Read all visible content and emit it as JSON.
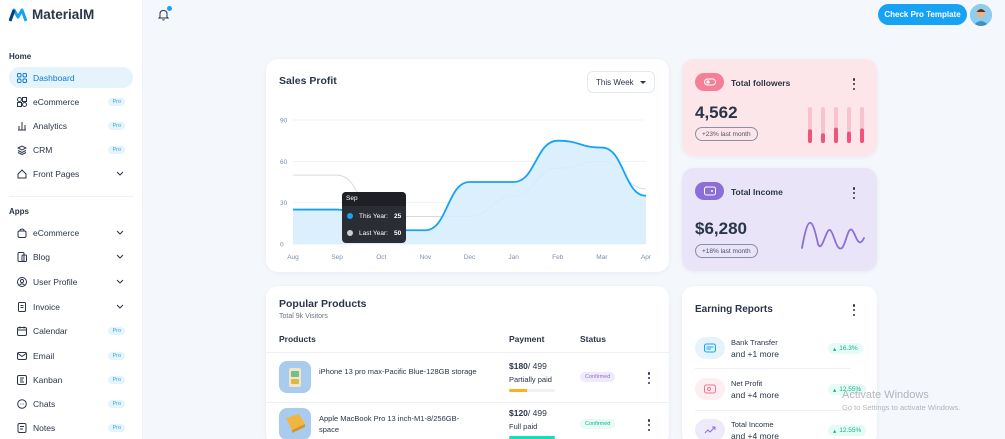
{
  "brand": {
    "name": "MaterialM"
  },
  "sidebar": {
    "home_caption": "Home",
    "apps_caption": "Apps",
    "pro_label": "Pro",
    "home_items": [
      {
        "label": "Dashboard",
        "icon": "dashboard-icon",
        "active": true,
        "badge": ""
      },
      {
        "label": "eCommerce",
        "icon": "ecommerce-icon",
        "badge": "Pro"
      },
      {
        "label": "Analytics",
        "icon": "analytics-icon",
        "badge": "Pro"
      },
      {
        "label": "CRM",
        "icon": "crm-icon",
        "badge": "Pro"
      },
      {
        "label": "Front Pages",
        "icon": "front-pages-icon",
        "badge": "chevron"
      }
    ],
    "apps_items": [
      {
        "label": "eCommerce",
        "icon": "bag-icon",
        "badge": "chevron"
      },
      {
        "label": "Blog",
        "icon": "blog-icon",
        "badge": "chevron"
      },
      {
        "label": "User Profile",
        "icon": "user-icon",
        "badge": "chevron"
      },
      {
        "label": "Invoice",
        "icon": "invoice-icon",
        "badge": "chevron"
      },
      {
        "label": "Calendar",
        "icon": "calendar-icon",
        "badge": "Pro"
      },
      {
        "label": "Email",
        "icon": "email-icon",
        "badge": "Pro"
      },
      {
        "label": "Kanban",
        "icon": "kanban-icon",
        "badge": "Pro"
      },
      {
        "label": "Chats",
        "icon": "chat-icon",
        "badge": "Pro"
      },
      {
        "label": "Notes",
        "icon": "notes-icon",
        "badge": "Pro"
      }
    ]
  },
  "header": {
    "pro_button": "Check Pro Template"
  },
  "sales_profit": {
    "title": "Sales Profit",
    "select_value": "This Week",
    "tooltip": {
      "month": "Sep",
      "this_year_label": "This Year:",
      "this_year_value": "25",
      "last_year_label": "Last Year:",
      "last_year_value": "50"
    }
  },
  "chart_data": {
    "type": "area",
    "categories": [
      "Aug",
      "Sep",
      "Oct",
      "Nov",
      "Dec",
      "Jan",
      "Feb",
      "Mar",
      "Apr"
    ],
    "series": [
      {
        "name": "This Year",
        "values": [
          25,
          25,
          10,
          10,
          45,
          45,
          75,
          70,
          35
        ]
      },
      {
        "name": "Last Year",
        "values": [
          50,
          50,
          20,
          20,
          20,
          35,
          55,
          60,
          40
        ]
      }
    ],
    "yticks": [
      0,
      30,
      60,
      90
    ],
    "ylim": [
      0,
      90
    ],
    "colors": {
      "this_year": "#16a3f5",
      "last_year": "#d6dbe3"
    }
  },
  "followers": {
    "title": "Total followers",
    "value": "4,562",
    "badge": "+23% last month",
    "bars": [
      0.85,
      0.6,
      0.95,
      0.7,
      0.9
    ]
  },
  "income": {
    "title": "Total Income",
    "value": "$6,280",
    "badge": "+18% last month"
  },
  "products": {
    "title": "Popular Products",
    "subtitle": "Total 9k Visitors",
    "headers": {
      "product": "Products",
      "payment": "Payment",
      "status": "Status"
    },
    "rows": [
      {
        "name": "iPhone 13 pro max-Pacific Blue-128GB storage",
        "paid": "$180",
        "total": "/ 499",
        "pay_status": "Partially paid",
        "progress": 0.4,
        "bar_color": "#ffae1f",
        "status": "Confirmed"
      },
      {
        "name": "Apple MacBook Pro 13 inch-M1-8/256GB-space",
        "paid": "$120",
        "total": "/ 499",
        "pay_status": "Full paid",
        "progress": 1.0,
        "bar_color": "#13deb9",
        "status": "Confirmed"
      }
    ]
  },
  "earning": {
    "title": "Earning Reports",
    "items": [
      {
        "name": "Bank Transfer",
        "more": "and +1 more",
        "pct": "16.3%",
        "icon": "bank-icon",
        "bg": "#e5f3fb",
        "fg": "#16a3f5"
      },
      {
        "name": "Net Profit",
        "more": "and +4 more",
        "pct": "12.55%",
        "icon": "wallet-icon",
        "bg": "#fdeef1",
        "fg": "#f07590"
      },
      {
        "name": "Total Income",
        "more": "and +4 more",
        "pct": "12.55%",
        "icon": "trend-icon",
        "bg": "#efeaf9",
        "fg": "#8b6fd6"
      }
    ]
  },
  "os": {
    "activate_title": "Activate Windows",
    "activate_sub": "Go to Settings to activate Windows."
  }
}
